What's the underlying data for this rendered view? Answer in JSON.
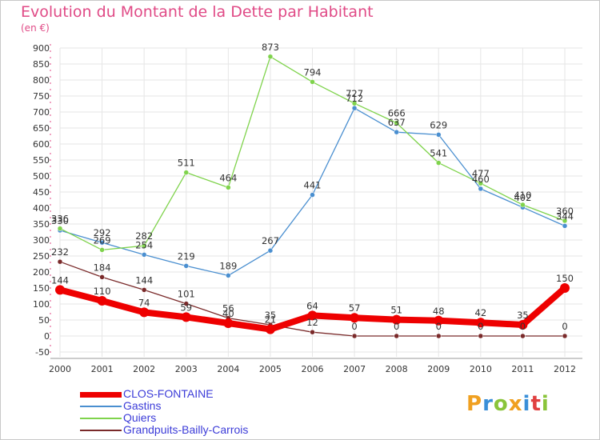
{
  "chart_data": {
    "type": "line",
    "title": "Evolution du Montant de la Dette par Habitant",
    "unit_label": "(en €)",
    "xlabel": "",
    "ylabel": "",
    "x": [
      "2000",
      "2001",
      "2002",
      "2003",
      "2004",
      "2005",
      "2006",
      "2007",
      "2008",
      "2009",
      "2010",
      "2011",
      "2012"
    ],
    "ylim": [
      -50,
      900
    ],
    "yticks": [
      -50,
      0,
      50,
      100,
      150,
      200,
      250,
      300,
      350,
      400,
      450,
      500,
      550,
      600,
      650,
      700,
      750,
      800,
      850,
      900
    ],
    "grid": true,
    "legend_position": "bottom-left",
    "series": [
      {
        "name": "CLOS-FONTAINE",
        "color": "#ee0000",
        "values": [
          144,
          110,
          74,
          59,
          40,
          21,
          64,
          57,
          51,
          48,
          42,
          35,
          150
        ],
        "labels": [
          "144",
          "110",
          "74",
          "59",
          "40",
          "21",
          "64",
          "57",
          "51",
          "48",
          "42",
          "35",
          "150"
        ]
      },
      {
        "name": "Gastins",
        "color": "#4a8fd0",
        "values": [
          330,
          292,
          254,
          219,
          189,
          267,
          441,
          712,
          637,
          629,
          460,
          402,
          344
        ],
        "labels": [
          "330",
          "292",
          "254",
          "219",
          "189",
          "267",
          "441",
          "712",
          "637",
          "629",
          "460",
          "402",
          "344"
        ]
      },
      {
        "name": "Quiers",
        "color": "#7fd34c",
        "values": [
          336,
          269,
          282,
          511,
          464,
          873,
          794,
          727,
          666,
          541,
          477,
          410,
          360
        ],
        "labels": [
          "336",
          "269",
          "282",
          "511",
          "464",
          "873",
          "794",
          "727",
          "666",
          "541",
          "477",
          "410",
          "360"
        ]
      },
      {
        "name": "Grandpuits-Bailly-Carrois",
        "color": "#7a2a2a",
        "values": [
          232,
          184,
          144,
          101,
          56,
          35,
          12,
          0,
          0,
          0,
          0,
          0,
          0
        ],
        "labels": [
          "232",
          "184",
          "144",
          "101",
          "56",
          "35",
          "12",
          "0",
          "0",
          "0",
          "0",
          "0",
          "0"
        ]
      }
    ]
  },
  "logo": {
    "letters": [
      "P",
      "r",
      "o",
      "x",
      "i",
      "t",
      "i"
    ],
    "colors": [
      "#f0a020",
      "#3a8fd8",
      "#8ac43a",
      "#f0a020",
      "#3a8fd8",
      "#e04040",
      "#8ac43a"
    ]
  }
}
